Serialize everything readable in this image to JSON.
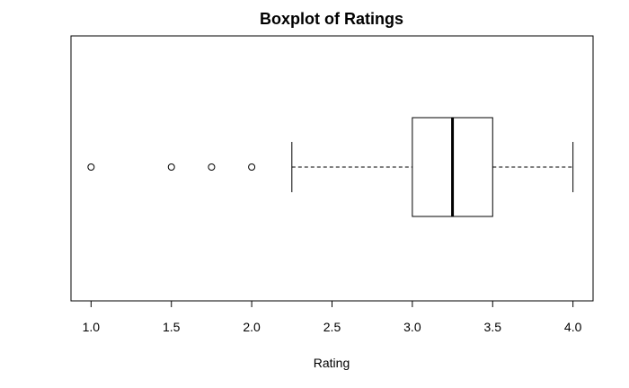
{
  "chart_data": {
    "type": "boxplot",
    "orientation": "horizontal",
    "title": "Boxplot of Ratings",
    "xlabel": "Rating",
    "ylabel": "",
    "xlim": [
      0.875,
      4.125
    ],
    "xticks": [
      1.0,
      1.5,
      2.0,
      2.5,
      3.0,
      3.5,
      4.0
    ],
    "xtick_labels": [
      "1.0",
      "1.5",
      "2.0",
      "2.5",
      "3.0",
      "3.5",
      "4.0"
    ],
    "grid": false,
    "box": {
      "whisker_low": 2.25,
      "q1": 3.0,
      "median": 3.25,
      "q3": 3.5,
      "whisker_high": 4.0
    },
    "outliers": [
      1.0,
      1.5,
      1.75,
      2.0
    ]
  }
}
